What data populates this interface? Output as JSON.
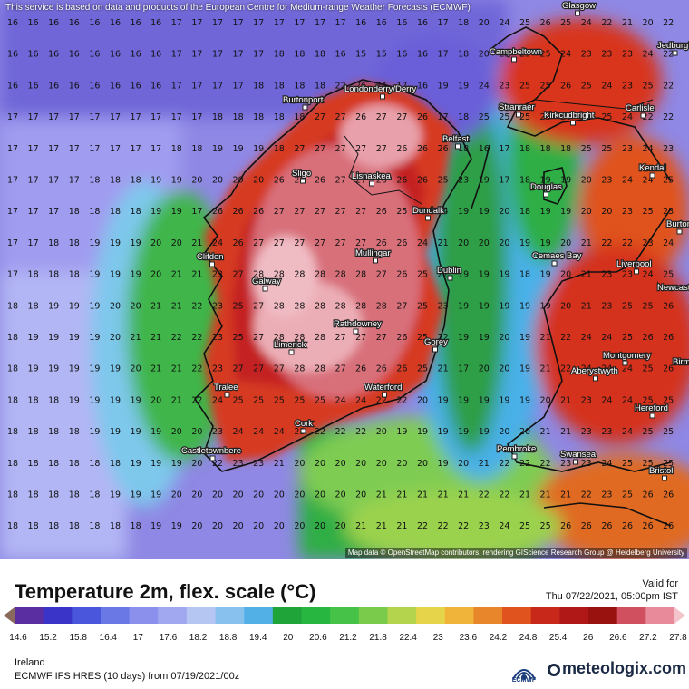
{
  "map": {
    "notice": "This service is based on data and products of the European Centre for Medium-range Weather Forecasts (ECMWF)",
    "attribution": "Map data © OpenStreetMap contributors, rendering GIScience Research Group @ Heidelberg University",
    "grid_rows": [
      [
        "16",
        "16",
        "16",
        "16",
        "16",
        "16",
        "16",
        "16",
        "17",
        "17",
        "17",
        "17",
        "17",
        "17",
        "17",
        "17",
        "17",
        "16",
        "16",
        "16",
        "16",
        "17",
        "18",
        "20",
        "24",
        "25",
        "26",
        "25",
        "24",
        "22",
        "21",
        "20",
        "22"
      ],
      [
        "16",
        "16",
        "16",
        "16",
        "16",
        "16",
        "16",
        "16",
        "17",
        "17",
        "17",
        "17",
        "17",
        "18",
        "18",
        "18",
        "16",
        "15",
        "15",
        "16",
        "16",
        "17",
        "18",
        "20",
        "25",
        "25",
        "25",
        "24",
        "23",
        "23",
        "23",
        "24",
        "22"
      ],
      [
        "16",
        "16",
        "16",
        "16",
        "16",
        "16",
        "16",
        "16",
        "17",
        "17",
        "17",
        "17",
        "18",
        "18",
        "18",
        "18",
        "22",
        "26",
        "24",
        "17",
        "16",
        "19",
        "19",
        "24",
        "23",
        "25",
        "25",
        "26",
        "25",
        "24",
        "23",
        "25",
        "22"
      ],
      [
        "17",
        "17",
        "17",
        "17",
        "17",
        "17",
        "17",
        "17",
        "17",
        "17",
        "18",
        "18",
        "18",
        "18",
        "18",
        "27",
        "27",
        "26",
        "27",
        "27",
        "26",
        "17",
        "18",
        "25",
        "25",
        "25",
        "25",
        "26",
        "25",
        "25",
        "24",
        "22",
        "22"
      ],
      [
        "17",
        "17",
        "17",
        "17",
        "17",
        "17",
        "17",
        "17",
        "18",
        "18",
        "19",
        "19",
        "19",
        "18",
        "27",
        "27",
        "27",
        "27",
        "27",
        "26",
        "26",
        "26",
        "18",
        "16",
        "17",
        "18",
        "18",
        "18",
        "25",
        "25",
        "23",
        "24",
        "23"
      ],
      [
        "17",
        "17",
        "17",
        "17",
        "18",
        "18",
        "18",
        "19",
        "19",
        "20",
        "20",
        "20",
        "20",
        "26",
        "26",
        "26",
        "27",
        "27",
        "26",
        "26",
        "26",
        "25",
        "23",
        "19",
        "17",
        "18",
        "19",
        "19",
        "20",
        "23",
        "24",
        "24",
        "25"
      ],
      [
        "17",
        "17",
        "17",
        "18",
        "18",
        "18",
        "18",
        "19",
        "19",
        "17",
        "26",
        "26",
        "26",
        "27",
        "27",
        "27",
        "27",
        "27",
        "26",
        "25",
        "25",
        "24",
        "19",
        "19",
        "20",
        "18",
        "19",
        "19",
        "20",
        "20",
        "23",
        "25",
        "23"
      ],
      [
        "17",
        "17",
        "18",
        "18",
        "19",
        "19",
        "19",
        "20",
        "20",
        "21",
        "24",
        "26",
        "27",
        "27",
        "27",
        "27",
        "27",
        "27",
        "26",
        "26",
        "24",
        "21",
        "20",
        "20",
        "20",
        "19",
        "19",
        "20",
        "21",
        "22",
        "22",
        "23",
        "24"
      ],
      [
        "17",
        "18",
        "18",
        "18",
        "19",
        "19",
        "19",
        "20",
        "21",
        "21",
        "23",
        "27",
        "28",
        "28",
        "28",
        "28",
        "28",
        "28",
        "27",
        "26",
        "25",
        "22",
        "19",
        "19",
        "19",
        "18",
        "19",
        "20",
        "21",
        "23",
        "23",
        "24",
        "25"
      ],
      [
        "18",
        "18",
        "19",
        "19",
        "19",
        "20",
        "20",
        "21",
        "21",
        "22",
        "23",
        "25",
        "27",
        "28",
        "28",
        "28",
        "28",
        "28",
        "28",
        "27",
        "25",
        "23",
        "19",
        "19",
        "19",
        "19",
        "19",
        "20",
        "21",
        "23",
        "25",
        "25",
        "26"
      ],
      [
        "18",
        "19",
        "19",
        "19",
        "19",
        "20",
        "21",
        "21",
        "22",
        "22",
        "23",
        "25",
        "27",
        "28",
        "28",
        "28",
        "27",
        "27",
        "27",
        "26",
        "25",
        "22",
        "19",
        "19",
        "20",
        "19",
        "21",
        "22",
        "24",
        "24",
        "25",
        "26",
        "26"
      ],
      [
        "18",
        "19",
        "19",
        "19",
        "19",
        "19",
        "20",
        "21",
        "21",
        "22",
        "23",
        "27",
        "27",
        "27",
        "28",
        "28",
        "27",
        "26",
        "26",
        "26",
        "25",
        "21",
        "17",
        "20",
        "20",
        "19",
        "21",
        "22",
        "24",
        "24",
        "24",
        "25",
        "26"
      ],
      [
        "18",
        "18",
        "18",
        "19",
        "19",
        "19",
        "19",
        "20",
        "21",
        "22",
        "24",
        "25",
        "25",
        "25",
        "25",
        "25",
        "24",
        "24",
        "22",
        "22",
        "20",
        "19",
        "19",
        "19",
        "19",
        "19",
        "20",
        "21",
        "23",
        "24",
        "24",
        "25",
        "25"
      ],
      [
        "18",
        "18",
        "18",
        "18",
        "19",
        "19",
        "19",
        "19",
        "20",
        "20",
        "23",
        "24",
        "24",
        "24",
        "23",
        "22",
        "22",
        "22",
        "20",
        "19",
        "19",
        "19",
        "19",
        "19",
        "20",
        "20",
        "21",
        "21",
        "23",
        "23",
        "24",
        "25",
        "25"
      ],
      [
        "18",
        "18",
        "18",
        "18",
        "18",
        "18",
        "19",
        "19",
        "19",
        "20",
        "22",
        "23",
        "23",
        "21",
        "20",
        "20",
        "20",
        "20",
        "20",
        "20",
        "20",
        "19",
        "20",
        "21",
        "22",
        "22",
        "22",
        "23",
        "23",
        "24",
        "25",
        "25",
        "25"
      ],
      [
        "18",
        "18",
        "18",
        "18",
        "18",
        "19",
        "19",
        "19",
        "20",
        "20",
        "20",
        "20",
        "20",
        "20",
        "20",
        "20",
        "20",
        "20",
        "21",
        "21",
        "21",
        "21",
        "21",
        "22",
        "22",
        "21",
        "21",
        "21",
        "22",
        "23",
        "25",
        "26",
        "26"
      ],
      [
        "18",
        "18",
        "18",
        "18",
        "18",
        "18",
        "18",
        "19",
        "19",
        "20",
        "20",
        "20",
        "20",
        "20",
        "20",
        "20",
        "20",
        "21",
        "21",
        "21",
        "22",
        "22",
        "22",
        "23",
        "24",
        "25",
        "25",
        "26",
        "26",
        "26",
        "26",
        "26",
        "26"
      ]
    ],
    "cities": [
      {
        "name": "Glasgow"
      },
      {
        "name": "Jedburgh"
      },
      {
        "name": "Campbeltown"
      },
      {
        "name": "Burtonport"
      },
      {
        "name": "Londonderry/Derry"
      },
      {
        "name": "Stranraer"
      },
      {
        "name": "Kirkcudbright"
      },
      {
        "name": "Carlisle"
      },
      {
        "name": "Belfast"
      },
      {
        "name": "Sligo"
      },
      {
        "name": "Lisnaskea"
      },
      {
        "name": "Kendal"
      },
      {
        "name": "Douglas"
      },
      {
        "name": "Dundalk"
      },
      {
        "name": "Clifden"
      },
      {
        "name": "Mullingar"
      },
      {
        "name": "Cemaes Bay"
      },
      {
        "name": "Liverpool"
      },
      {
        "name": "Dublin"
      },
      {
        "name": "Galway"
      },
      {
        "name": "Newcastle-under-Lyme"
      },
      {
        "name": "Rathdowney"
      },
      {
        "name": "Limerick"
      },
      {
        "name": "Gorey"
      },
      {
        "name": "Montgomery"
      },
      {
        "name": "Aberystwyth"
      },
      {
        "name": "Tralee"
      },
      {
        "name": "Waterford"
      },
      {
        "name": "Hereford"
      },
      {
        "name": "Cork"
      },
      {
        "name": "Castletownbere"
      },
      {
        "name": "Pembroke"
      },
      {
        "name": "Swansea"
      },
      {
        "name": "Bristol"
      },
      {
        "name": "Burton"
      },
      {
        "name": "Birmingham"
      }
    ]
  },
  "legend": {
    "title": "Temperature 2m, flex. scale (°C)",
    "valid_label": "Valid for",
    "valid_time": "Thu 07/22/2021, 05:00pm IST",
    "ticks": [
      "14.6",
      "15.2",
      "15.8",
      "16.4",
      "17",
      "17.6",
      "18.2",
      "18.8",
      "19.4",
      "20",
      "20.6",
      "21.2",
      "21.8",
      "22.4",
      "23",
      "23.6",
      "24.2",
      "24.8",
      "25.4",
      "26",
      "26.6",
      "27.2",
      "27.8"
    ],
    "colors": [
      "#8a6a5c",
      "#5a2ea0",
      "#3a34c8",
      "#4a57dd",
      "#6a78e6",
      "#8a90ec",
      "#a2a8f0",
      "#b6c6f3",
      "#88c0ee",
      "#53b0e6",
      "#1fa43a",
      "#27b640",
      "#46c248",
      "#7acb4c",
      "#b5d44e",
      "#e6d44a",
      "#f0b43a",
      "#e8862c",
      "#e0521e",
      "#c8281a",
      "#b01818",
      "#9a1210",
      "#d05060",
      "#e88a9a",
      "#f4c4cc"
    ],
    "region": "Ireland",
    "model": "ECMWF IFS HRES (10 days) from 07/19/2021/00z",
    "ecmwf_label": "ECMWF",
    "brand": "meteologix.com"
  }
}
